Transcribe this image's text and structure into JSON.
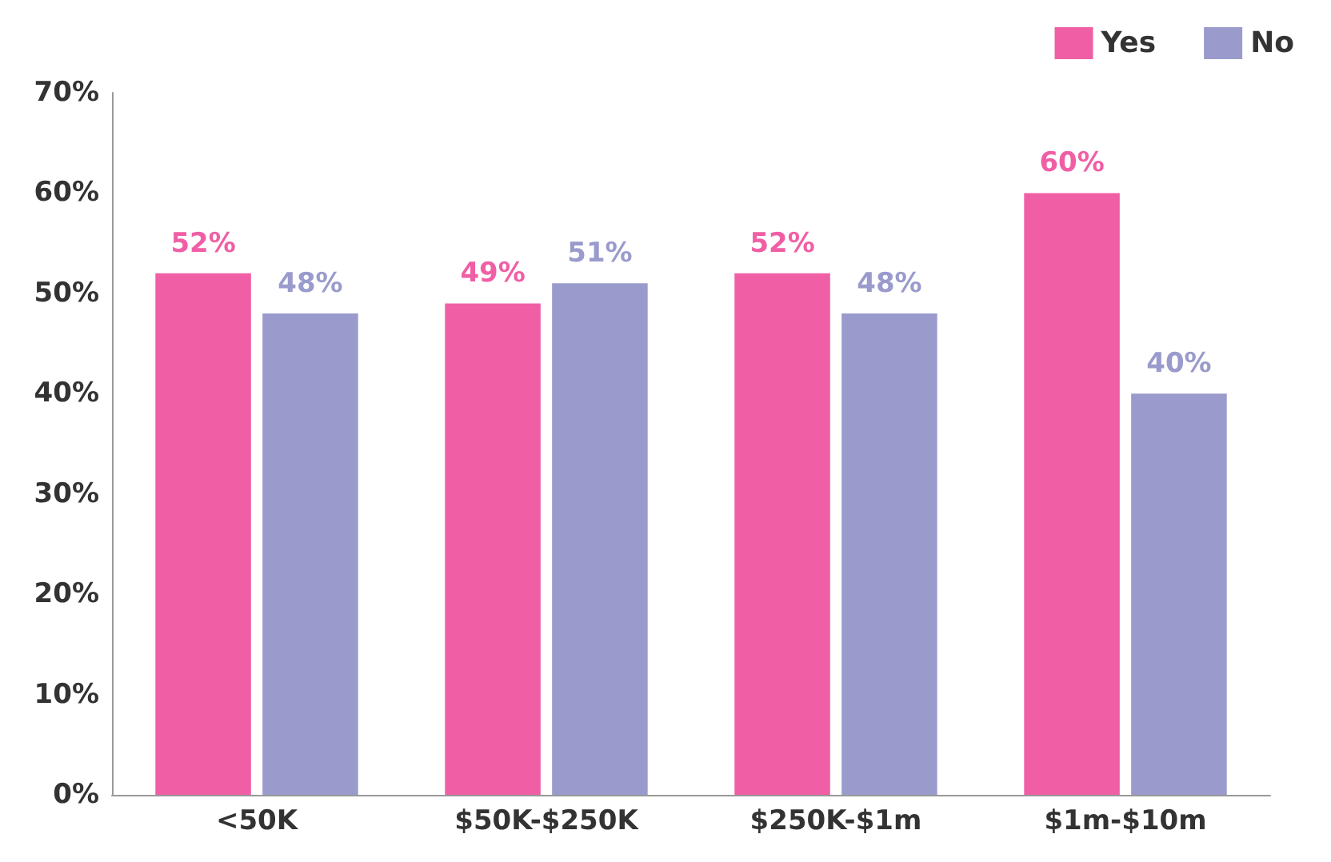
{
  "chart_data": {
    "type": "bar",
    "categories": [
      "<50K",
      "$50K-$250K",
      "$250K-$1m",
      "$1m-$10m"
    ],
    "series": [
      {
        "name": "Yes",
        "color": "#f05fa5",
        "values": [
          52,
          49,
          52,
          60
        ],
        "value_labels": [
          "52%",
          "49%",
          "52%",
          "60%"
        ]
      },
      {
        "name": "No",
        "color": "#9a9bcc",
        "values": [
          48,
          51,
          48,
          40
        ],
        "value_labels": [
          "48%",
          "51%",
          "48%",
          "40%"
        ]
      }
    ],
    "ylim": [
      0,
      70
    ],
    "yticks": [
      {
        "value": 0,
        "label": "0%"
      },
      {
        "value": 10,
        "label": "10%"
      },
      {
        "value": 20,
        "label": "20%"
      },
      {
        "value": 30,
        "label": "30%"
      },
      {
        "value": 40,
        "label": "40%"
      },
      {
        "value": 50,
        "label": "50%"
      },
      {
        "value": 60,
        "label": "60%"
      },
      {
        "value": 70,
        "label": "70%"
      }
    ],
    "grid": false,
    "legend": "top right"
  }
}
